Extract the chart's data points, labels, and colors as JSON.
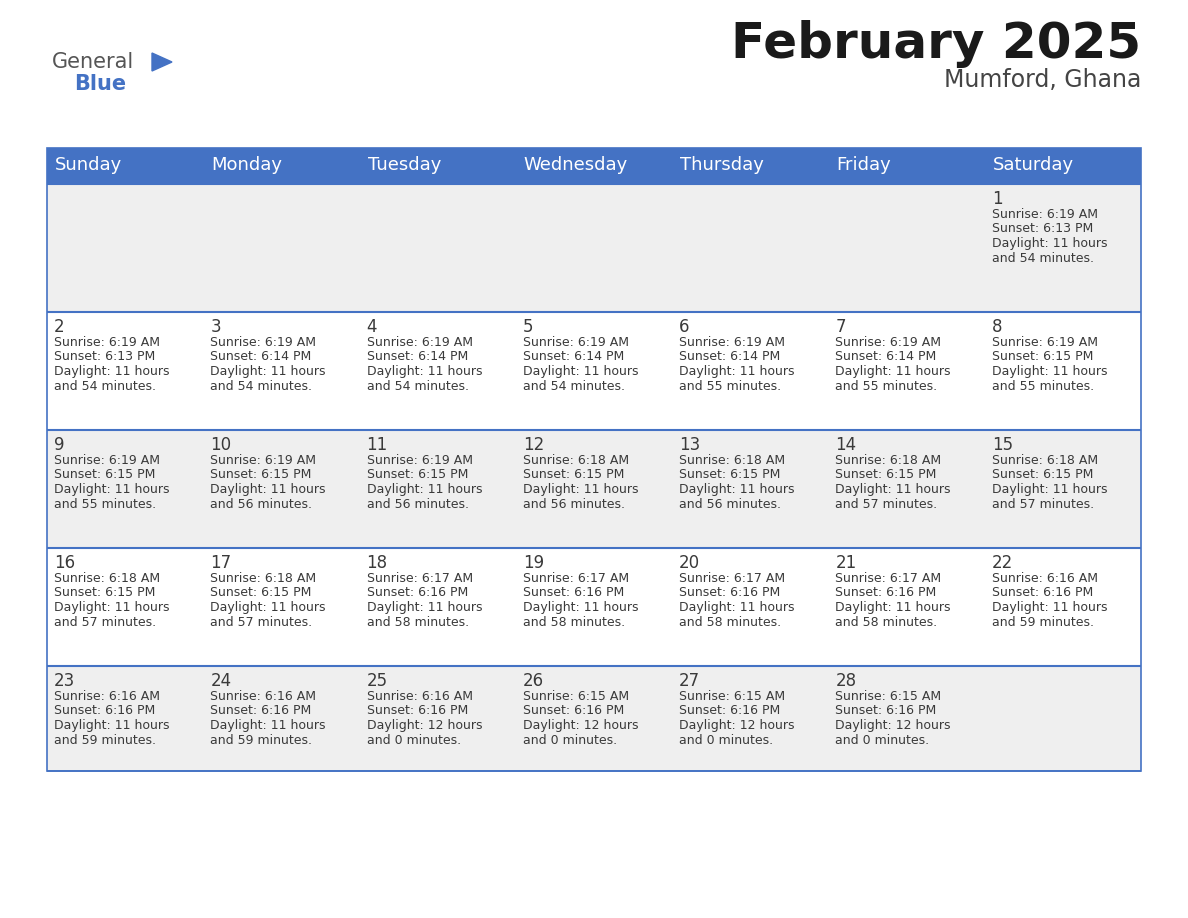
{
  "title": "February 2025",
  "subtitle": "Mumford, Ghana",
  "header_bg": "#4472C4",
  "header_text": "#FFFFFF",
  "days_of_week": [
    "Sunday",
    "Monday",
    "Tuesday",
    "Wednesday",
    "Thursday",
    "Friday",
    "Saturday"
  ],
  "cell_bg_light": "#EFEFEF",
  "cell_bg_white": "#FFFFFF",
  "row_line_color": "#4472C4",
  "text_color": "#3a3a3a",
  "title_color": "#1a1a1a",
  "subtitle_color": "#444444",
  "calendar": [
    [
      {
        "day": null,
        "sunrise": null,
        "sunset": null,
        "daylight": null
      },
      {
        "day": null,
        "sunrise": null,
        "sunset": null,
        "daylight": null
      },
      {
        "day": null,
        "sunrise": null,
        "sunset": null,
        "daylight": null
      },
      {
        "day": null,
        "sunrise": null,
        "sunset": null,
        "daylight": null
      },
      {
        "day": null,
        "sunrise": null,
        "sunset": null,
        "daylight": null
      },
      {
        "day": null,
        "sunrise": null,
        "sunset": null,
        "daylight": null
      },
      {
        "day": 1,
        "sunrise": "6:19 AM",
        "sunset": "6:13 PM",
        "daylight": "11 hours\nand 54 minutes."
      }
    ],
    [
      {
        "day": 2,
        "sunrise": "6:19 AM",
        "sunset": "6:13 PM",
        "daylight": "11 hours\nand 54 minutes."
      },
      {
        "day": 3,
        "sunrise": "6:19 AM",
        "sunset": "6:14 PM",
        "daylight": "11 hours\nand 54 minutes."
      },
      {
        "day": 4,
        "sunrise": "6:19 AM",
        "sunset": "6:14 PM",
        "daylight": "11 hours\nand 54 minutes."
      },
      {
        "day": 5,
        "sunrise": "6:19 AM",
        "sunset": "6:14 PM",
        "daylight": "11 hours\nand 54 minutes."
      },
      {
        "day": 6,
        "sunrise": "6:19 AM",
        "sunset": "6:14 PM",
        "daylight": "11 hours\nand 55 minutes."
      },
      {
        "day": 7,
        "sunrise": "6:19 AM",
        "sunset": "6:14 PM",
        "daylight": "11 hours\nand 55 minutes."
      },
      {
        "day": 8,
        "sunrise": "6:19 AM",
        "sunset": "6:15 PM",
        "daylight": "11 hours\nand 55 minutes."
      }
    ],
    [
      {
        "day": 9,
        "sunrise": "6:19 AM",
        "sunset": "6:15 PM",
        "daylight": "11 hours\nand 55 minutes."
      },
      {
        "day": 10,
        "sunrise": "6:19 AM",
        "sunset": "6:15 PM",
        "daylight": "11 hours\nand 56 minutes."
      },
      {
        "day": 11,
        "sunrise": "6:19 AM",
        "sunset": "6:15 PM",
        "daylight": "11 hours\nand 56 minutes."
      },
      {
        "day": 12,
        "sunrise": "6:18 AM",
        "sunset": "6:15 PM",
        "daylight": "11 hours\nand 56 minutes."
      },
      {
        "day": 13,
        "sunrise": "6:18 AM",
        "sunset": "6:15 PM",
        "daylight": "11 hours\nand 56 minutes."
      },
      {
        "day": 14,
        "sunrise": "6:18 AM",
        "sunset": "6:15 PM",
        "daylight": "11 hours\nand 57 minutes."
      },
      {
        "day": 15,
        "sunrise": "6:18 AM",
        "sunset": "6:15 PM",
        "daylight": "11 hours\nand 57 minutes."
      }
    ],
    [
      {
        "day": 16,
        "sunrise": "6:18 AM",
        "sunset": "6:15 PM",
        "daylight": "11 hours\nand 57 minutes."
      },
      {
        "day": 17,
        "sunrise": "6:18 AM",
        "sunset": "6:15 PM",
        "daylight": "11 hours\nand 57 minutes."
      },
      {
        "day": 18,
        "sunrise": "6:17 AM",
        "sunset": "6:16 PM",
        "daylight": "11 hours\nand 58 minutes."
      },
      {
        "day": 19,
        "sunrise": "6:17 AM",
        "sunset": "6:16 PM",
        "daylight": "11 hours\nand 58 minutes."
      },
      {
        "day": 20,
        "sunrise": "6:17 AM",
        "sunset": "6:16 PM",
        "daylight": "11 hours\nand 58 minutes."
      },
      {
        "day": 21,
        "sunrise": "6:17 AM",
        "sunset": "6:16 PM",
        "daylight": "11 hours\nand 58 minutes."
      },
      {
        "day": 22,
        "sunrise": "6:16 AM",
        "sunset": "6:16 PM",
        "daylight": "11 hours\nand 59 minutes."
      }
    ],
    [
      {
        "day": 23,
        "sunrise": "6:16 AM",
        "sunset": "6:16 PM",
        "daylight": "11 hours\nand 59 minutes."
      },
      {
        "day": 24,
        "sunrise": "6:16 AM",
        "sunset": "6:16 PM",
        "daylight": "11 hours\nand 59 minutes."
      },
      {
        "day": 25,
        "sunrise": "6:16 AM",
        "sunset": "6:16 PM",
        "daylight": "12 hours\nand 0 minutes."
      },
      {
        "day": 26,
        "sunrise": "6:15 AM",
        "sunset": "6:16 PM",
        "daylight": "12 hours\nand 0 minutes."
      },
      {
        "day": 27,
        "sunrise": "6:15 AM",
        "sunset": "6:16 PM",
        "daylight": "12 hours\nand 0 minutes."
      },
      {
        "day": 28,
        "sunrise": "6:15 AM",
        "sunset": "6:16 PM",
        "daylight": "12 hours\nand 0 minutes."
      },
      {
        "day": null,
        "sunrise": null,
        "sunset": null,
        "daylight": null
      }
    ]
  ],
  "logo_text_general": "General",
  "logo_text_blue": "Blue",
  "logo_color_general": "#555555",
  "logo_color_blue": "#4472C4",
  "logo_fontsize": 15,
  "title_fontsize": 36,
  "subtitle_fontsize": 17,
  "header_fontsize": 13,
  "day_num_fontsize": 12,
  "cell_text_fontsize": 9
}
